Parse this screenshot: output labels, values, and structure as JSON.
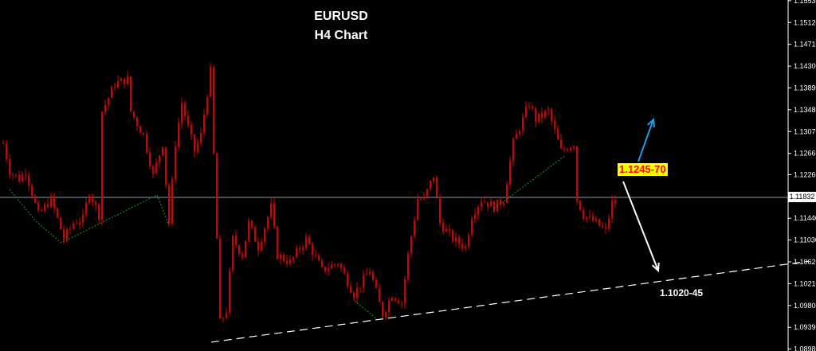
{
  "chart_data": {
    "type": "candlestick",
    "title": "EURUSD",
    "subtitle": "H4 Chart",
    "ylim": [
      1.0898,
      1.1553
    ],
    "y_ticks": [
      "1.15530",
      "1.15120",
      "1.14710",
      "1.14300",
      "1.13890",
      "1.13480",
      "1.13070",
      "1.12660",
      "1.12260",
      "1.11440",
      "1.11030",
      "1.10620",
      "1.10210",
      "1.09800",
      "1.09390",
      "1.08980"
    ],
    "current_price": "1.11832",
    "grid": false,
    "colors": {
      "candle": "#d40000",
      "background": "#000000",
      "axis": "#ffffff",
      "current_line": "#8a9bb0",
      "trendline": "#ffffff",
      "zigzag": "#1e9e1e",
      "up_arrow": "#1e9be0",
      "down_arrow": "#ffffff",
      "label_bg": "#ffff00",
      "label_text": "#ff0000"
    },
    "keyframe_bars": [
      0,
      2,
      5,
      7,
      11,
      15,
      19,
      22,
      25,
      27,
      30,
      31,
      35,
      39,
      40,
      44,
      47,
      50,
      52,
      54,
      56,
      60,
      62,
      65,
      67,
      67.5,
      70,
      72,
      75,
      77,
      80,
      84,
      86,
      90,
      95,
      100,
      105,
      110,
      115,
      119,
      122,
      125,
      127,
      130,
      132,
      135,
      137,
      141,
      145,
      147,
      150,
      154,
      157,
      160,
      162,
      165,
      167,
      171,
      175,
      179,
      180,
      182,
      186,
      189,
      191,
      192
    ],
    "keyframe_closes": [
      1.1285,
      1.1233,
      1.1218,
      1.1233,
      1.115,
      1.118,
      1.1105,
      1.1135,
      1.1143,
      1.1195,
      1.115,
      1.1345,
      1.1397,
      1.1405,
      1.1345,
      1.13,
      1.1225,
      1.1285,
      1.1135,
      1.1285,
      1.136,
      1.127,
      1.13,
      1.142,
      1.1105,
      1.0941,
      1.0971,
      1.1105,
      1.1075,
      1.1135,
      1.109,
      1.1165,
      1.1075,
      1.1061,
      1.1105,
      1.1046,
      1.1061,
      1.1001,
      1.1046,
      1.0963,
      1.1001,
      1.0986,
      1.1075,
      1.118,
      1.118,
      1.1225,
      1.1135,
      1.1105,
      1.109,
      1.115,
      1.118,
      1.1165,
      1.118,
      1.1285,
      1.1315,
      1.136,
      1.133,
      1.1345,
      1.127,
      1.1285,
      1.118,
      1.115,
      1.1135,
      1.112,
      1.1173,
      1.1173
    ],
    "trendline": {
      "from_price": 1.0911,
      "to_price": 1.1063,
      "style": "dashed"
    },
    "annotations": [
      {
        "text": "1.1245-70",
        "direction": "up"
      },
      {
        "text": "1.1020-45",
        "direction": "down"
      }
    ]
  }
}
